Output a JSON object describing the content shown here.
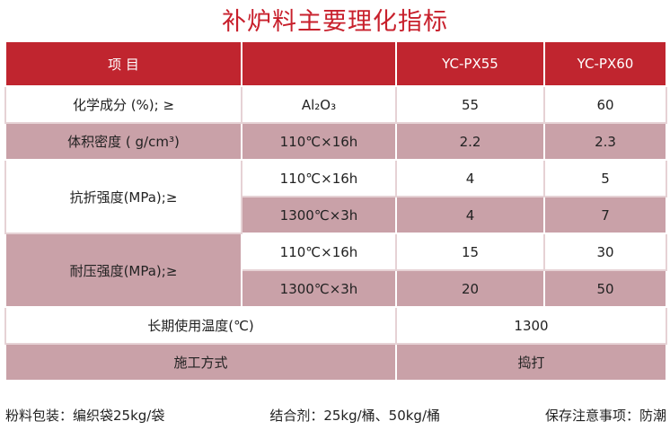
{
  "title": "补炉料主要理化指标",
  "table": {
    "header": [
      "项 目",
      "YC-PX55",
      "YC-PX60"
    ],
    "rows": [
      [
        "化学成分 (%); ≥",
        "Al₂O₃",
        "55",
        "60"
      ],
      [
        "体积密度 ( g/cm³)",
        "110℃×16h",
        "2.2",
        "2.3"
      ],
      [
        "抗折强度(MPa);≥",
        "110℃×16h",
        "4",
        "5"
      ],
      [
        "1300℃×3h",
        "4",
        "7"
      ],
      [
        "耐压强度(MPa);≥",
        "110℃×16h",
        "15",
        "30"
      ],
      [
        "1300℃×3h",
        "20",
        "50"
      ],
      [
        "长期使用温度(℃)",
        "1300"
      ],
      [
        "施工方式",
        "捣打"
      ]
    ]
  },
  "footer": [
    "粉料包装：编织袋25kg/袋",
    "结合剂：25kg/桶、50kg/桶",
    "保存注意事项：防潮"
  ]
}
